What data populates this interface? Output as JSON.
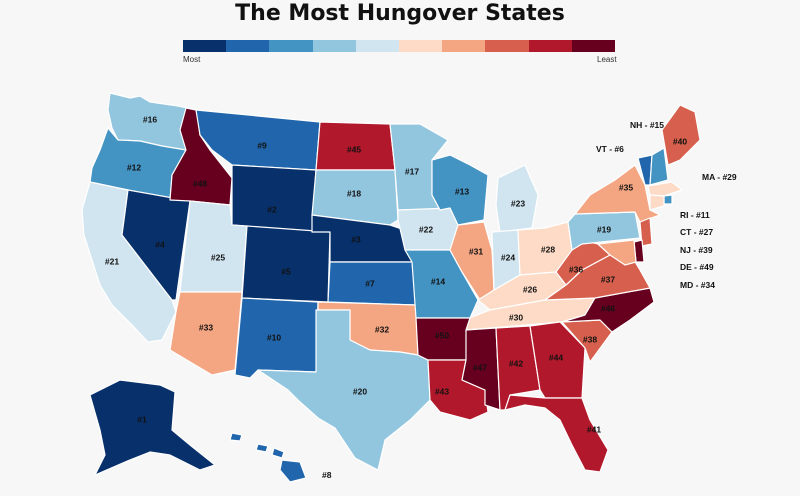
{
  "title": "The Most Hungover States",
  "legend": {
    "min_label": "Most",
    "max_label": "Least",
    "colors": [
      "#08306b",
      "#2166ac",
      "#4393c3",
      "#92c5de",
      "#d1e5f0",
      "#fddbc7",
      "#f4a582",
      "#d6604d",
      "#b2182b",
      "#67001f"
    ]
  },
  "states": [
    {
      "id": "WA",
      "label": "#16",
      "rank": 16
    },
    {
      "id": "OR",
      "label": "#12",
      "rank": 12
    },
    {
      "id": "CA",
      "label": "#21",
      "rank": 21
    },
    {
      "id": "NV",
      "label": "#4",
      "rank": 4
    },
    {
      "id": "ID",
      "label": "#48",
      "rank": 48
    },
    {
      "id": "MT",
      "label": "#9",
      "rank": 9
    },
    {
      "id": "WY",
      "label": "#2",
      "rank": 2
    },
    {
      "id": "UT",
      "label": "#25",
      "rank": 25
    },
    {
      "id": "AZ",
      "label": "#33",
      "rank": 33
    },
    {
      "id": "CO",
      "label": "#5",
      "rank": 5
    },
    {
      "id": "NM",
      "label": "#10",
      "rank": 10
    },
    {
      "id": "ND",
      "label": "#45",
      "rank": 45
    },
    {
      "id": "SD",
      "label": "#18",
      "rank": 18
    },
    {
      "id": "NE",
      "label": "#3",
      "rank": 3
    },
    {
      "id": "KS",
      "label": "#7",
      "rank": 7
    },
    {
      "id": "OK",
      "label": "#32",
      "rank": 32
    },
    {
      "id": "TX",
      "label": "#20",
      "rank": 20
    },
    {
      "id": "MN",
      "label": "#17",
      "rank": 17
    },
    {
      "id": "IA",
      "label": "#22",
      "rank": 22
    },
    {
      "id": "MO",
      "label": "#14",
      "rank": 14
    },
    {
      "id": "AR",
      "label": "#50",
      "rank": 50
    },
    {
      "id": "LA",
      "label": "#43",
      "rank": 43
    },
    {
      "id": "WI",
      "label": "#13",
      "rank": 13
    },
    {
      "id": "IL",
      "label": "#31",
      "rank": 31
    },
    {
      "id": "MI",
      "label": "#23",
      "rank": 23
    },
    {
      "id": "IN",
      "label": "#24",
      "rank": 24
    },
    {
      "id": "OH",
      "label": "#28",
      "rank": 28
    },
    {
      "id": "KY",
      "label": "#26",
      "rank": 26
    },
    {
      "id": "TN",
      "label": "#30",
      "rank": 30
    },
    {
      "id": "MS",
      "label": "#47",
      "rank": 47
    },
    {
      "id": "AL",
      "label": "#42",
      "rank": 42
    },
    {
      "id": "GA",
      "label": "#44",
      "rank": 44
    },
    {
      "id": "FL",
      "label": "#41",
      "rank": 41
    },
    {
      "id": "SC",
      "label": "#38",
      "rank": 38
    },
    {
      "id": "NC",
      "label": "#46",
      "rank": 46
    },
    {
      "id": "VA",
      "label": "#37",
      "rank": 37
    },
    {
      "id": "WV",
      "label": "#36",
      "rank": 36
    },
    {
      "id": "PA",
      "label": "#19",
      "rank": 19
    },
    {
      "id": "NY",
      "label": "#35",
      "rank": 35
    },
    {
      "id": "ME",
      "label": "#40",
      "rank": 40
    },
    {
      "id": "AK",
      "label": "#1",
      "rank": 1
    },
    {
      "id": "HI",
      "label": "#8",
      "rank": 8
    },
    {
      "id": "VT",
      "label": "VT - #6",
      "rank": 6
    },
    {
      "id": "NH",
      "label": "NH - #15",
      "rank": 15
    },
    {
      "id": "MA",
      "label": "MA - #29",
      "rank": 29
    },
    {
      "id": "RI",
      "label": "RI - #11",
      "rank": 11
    },
    {
      "id": "CT",
      "label": "CT - #27",
      "rank": 27
    },
    {
      "id": "NJ",
      "label": "NJ - #39",
      "rank": 39
    },
    {
      "id": "DE",
      "label": "DE - #49",
      "rank": 49
    },
    {
      "id": "MD",
      "label": "MD - #34",
      "rank": 34
    }
  ]
}
